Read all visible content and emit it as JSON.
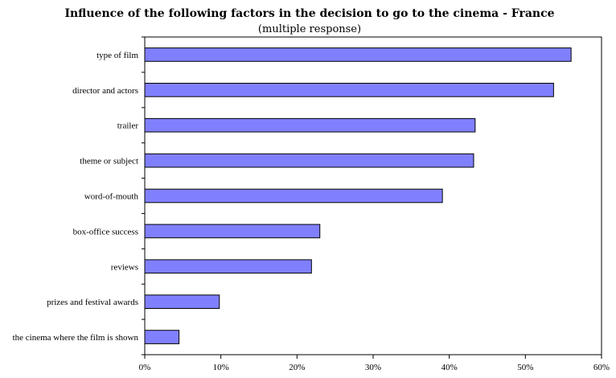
{
  "chart_data": {
    "type": "bar",
    "orientation": "horizontal",
    "title": "Influence of the following factors in the decision to go to the cinema - France",
    "subtitle": "(multiple response)",
    "categories": [
      "type of film",
      "director and actors",
      "trailer",
      "theme or subject",
      "word-of-mouth",
      "box-office success",
      "reviews",
      "prizes and festival awards",
      "the cinema where the film is shown"
    ],
    "values": [
      56,
      53.7,
      43.4,
      43.2,
      39.1,
      23,
      21.9,
      9.8,
      4.5
    ],
    "xlim": [
      0,
      60
    ],
    "xticks": [
      0,
      10,
      20,
      30,
      40,
      50,
      60
    ],
    "xtick_labels": [
      "0%",
      "10%",
      "20%",
      "30%",
      "40%",
      "50%",
      "60%"
    ],
    "bar_color": "#8080ff",
    "grid": false,
    "legend": "none"
  }
}
